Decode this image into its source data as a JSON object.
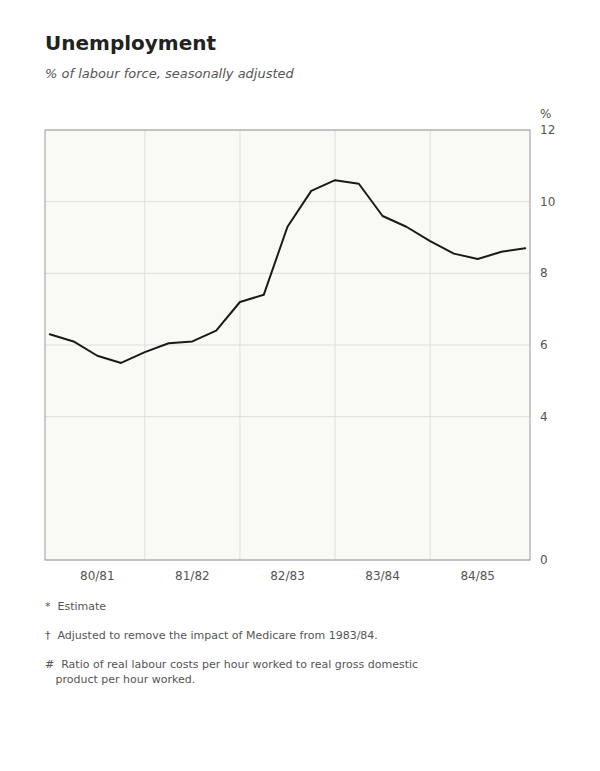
{
  "chart_data": {
    "type": "line",
    "title": "Unemployment",
    "subtitle": "% of labour force, seasonally adjusted",
    "y_label": "%",
    "x": [
      0,
      0.25,
      0.5,
      0.75,
      1.0,
      1.25,
      1.5,
      1.75,
      2.0,
      2.25,
      2.5,
      2.75,
      3.0,
      3.25,
      3.5,
      3.75,
      4.0,
      4.25,
      4.5,
      4.75,
      5.0
    ],
    "values": [
      6.3,
      6.1,
      5.7,
      5.5,
      5.8,
      6.05,
      6.1,
      6.4,
      7.2,
      7.4,
      9.3,
      10.3,
      10.6,
      10.5,
      9.6,
      9.3,
      8.9,
      8.55,
      8.4,
      8.6,
      8.7
    ],
    "color": "#1a1a1a",
    "xlim": [
      -0.05,
      5.05
    ],
    "xticks": [
      {
        "value": 0.5,
        "label": "80/81"
      },
      {
        "value": 1.5,
        "label": "81/82"
      },
      {
        "value": 2.5,
        "label": "82/83"
      },
      {
        "value": 3.5,
        "label": "83/84"
      },
      {
        "value": 4.5,
        "label": "84/85"
      }
    ],
    "ylim": [
      0,
      12
    ],
    "yticks": [
      0,
      4,
      6,
      8,
      10,
      12
    ],
    "grid": true,
    "footnotes": [
      "*  Estimate",
      "†  Adjusted to remove the impact of Medicare from 1983/84.",
      "#  Ratio of real labour costs per hour worked to real gross domestic\n   product per hour worked."
    ]
  }
}
